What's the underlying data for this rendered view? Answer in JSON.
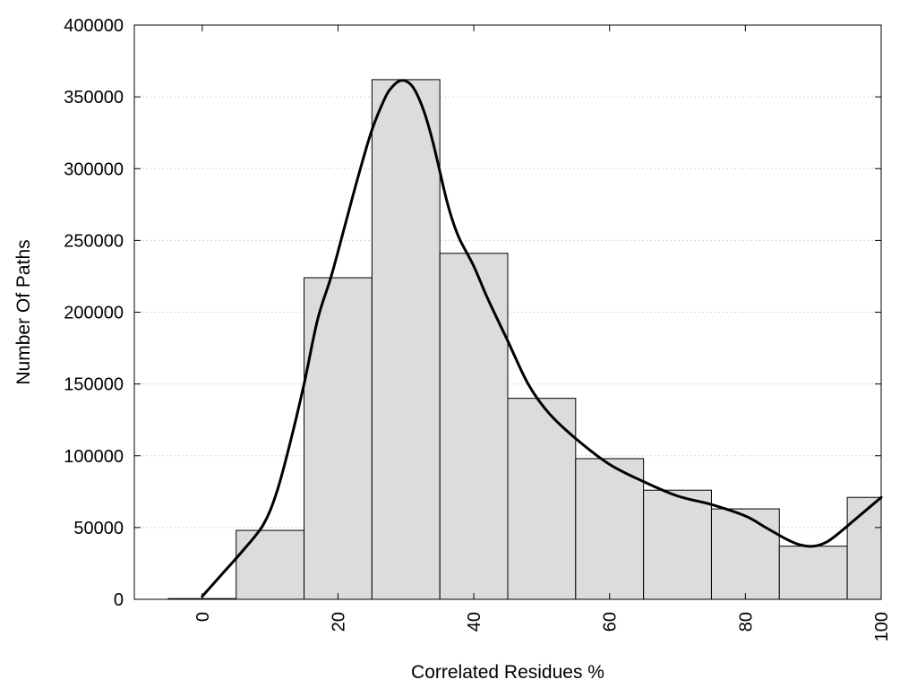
{
  "chart_data": {
    "type": "bar",
    "title": "",
    "xlabel": "Correlated Residues %",
    "ylabel": "Number Of Paths",
    "xlim": [
      -10,
      100
    ],
    "ylim": [
      0,
      400000
    ],
    "grid": "horizontal dotted",
    "legend": "none",
    "bar_color": "#dcdcdc",
    "bar_edge_color": "#000000",
    "line_color": "#000000",
    "x_ticks": [
      0,
      20,
      40,
      60,
      80,
      100
    ],
    "y_ticks": [
      0,
      50000,
      100000,
      150000,
      200000,
      250000,
      300000,
      350000,
      400000
    ],
    "categories": [
      0,
      10,
      20,
      30,
      40,
      50,
      60,
      70,
      80,
      90,
      100
    ],
    "bin_width": 10,
    "values": [
      500,
      48000,
      224000,
      362000,
      241000,
      140000,
      98000,
      76000,
      63000,
      37000,
      71000
    ],
    "density_curve": {
      "x": [
        0,
        3,
        6,
        9,
        11,
        13,
        15,
        17,
        19,
        21,
        23,
        25,
        27,
        28,
        29,
        30,
        31,
        32,
        33,
        34,
        35,
        36,
        37,
        38,
        40,
        42,
        45,
        48,
        51,
        55,
        60,
        65,
        70,
        75,
        80,
        83,
        86,
        88,
        90,
        92,
        94,
        96,
        98,
        100
      ],
      "y": [
        2000,
        18000,
        34000,
        52000,
        75000,
        110000,
        150000,
        195000,
        225000,
        260000,
        295000,
        327000,
        350000,
        357000,
        361000,
        361000,
        357000,
        348000,
        335000,
        318000,
        298000,
        278000,
        262000,
        250000,
        232000,
        210000,
        180000,
        150000,
        130000,
        112000,
        94000,
        82000,
        72000,
        66000,
        58000,
        50000,
        42000,
        38000,
        37000,
        40000,
        47000,
        55000,
        63000,
        71000
      ]
    }
  }
}
